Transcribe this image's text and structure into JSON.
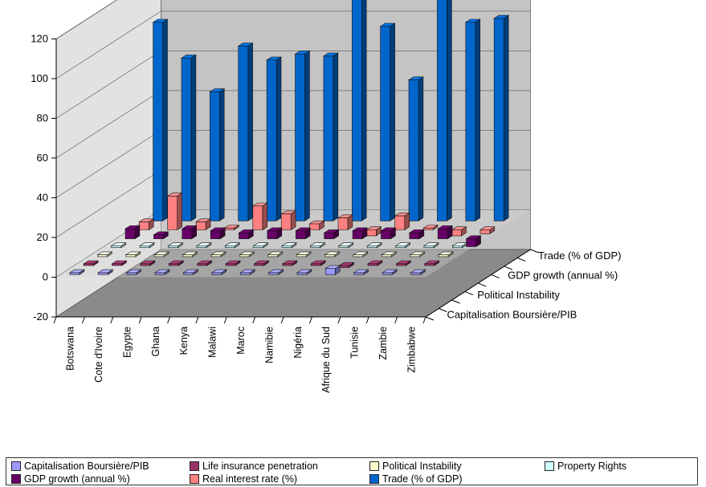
{
  "chart_data": {
    "type": "bar",
    "categories": [
      "Botswana",
      "Cote d'Ivoire",
      "Egypte",
      "Ghana",
      "Kenya",
      "Malawi",
      "Maroc",
      "Namibie",
      "Nigéria",
      "Afrique du Sud",
      "Tunisie",
      "Zambie",
      "Zimbabwe"
    ],
    "yticks": [
      "120",
      "100",
      "80",
      "60",
      "40",
      "20",
      "0",
      "-20"
    ],
    "ylim": [
      -20,
      120
    ],
    "depth_axis_labels": [
      "Trade (% of GDP)",
      "GDP growth (annual %)",
      "Political Instability",
      "Capitalisation Boursière/PIB"
    ],
    "series": [
      {
        "name": "Capitalisation Boursière/PIB",
        "color": "#9999ff",
        "values": [
          0,
          0,
          0,
          0,
          0,
          0,
          0,
          0,
          0,
          3,
          0,
          0,
          0
        ]
      },
      {
        "name": "Life insurance penetration",
        "color": "#993366",
        "values": [
          0,
          0,
          0,
          0,
          0,
          0,
          0,
          0,
          0,
          -1,
          0,
          0,
          0
        ]
      },
      {
        "name": "Political Instability",
        "color": "#ffffcc",
        "values": [
          0,
          0,
          0,
          0,
          0,
          0,
          0,
          0,
          0,
          0,
          0,
          0,
          0
        ]
      },
      {
        "name": "Property Rights",
        "color": "#ccffff",
        "values": [
          0,
          0,
          0,
          0,
          0,
          0,
          0,
          0,
          0,
          0,
          0,
          0,
          0
        ]
      },
      {
        "name": "GDP growth (annual %)",
        "color": "#660066",
        "values": [
          5,
          2,
          5,
          4,
          3,
          4,
          4,
          3,
          4,
          4,
          3,
          5,
          -4
        ]
      },
      {
        "name": "Real interest rate (%)",
        "color": "#ff8080",
        "values": [
          4,
          17,
          4,
          0,
          12,
          8,
          3,
          6,
          -3,
          7,
          0,
          -3,
          -2
        ]
      },
      {
        "name": "Trade (% of GDP)",
        "color": "#0066cc",
        "values": [
          100,
          82,
          65,
          88,
          81,
          84,
          83,
          119,
          98,
          71,
          114,
          100,
          102
        ]
      }
    ],
    "grid": true
  },
  "legend": [
    {
      "label": "Capitalisation Boursière/PIB",
      "color": "#9999ff"
    },
    {
      "label": "Life insurance penetration",
      "color": "#993366"
    },
    {
      "label": "Political Instability",
      "color": "#ffffcc"
    },
    {
      "label": "Property Rights",
      "color": "#ccffff"
    },
    {
      "label": "GDP growth (annual %)",
      "color": "#660066"
    },
    {
      "label": "Real interest rate (%)",
      "color": "#ff8080"
    },
    {
      "label": "Trade (% of GDP)",
      "color": "#0066cc"
    }
  ]
}
